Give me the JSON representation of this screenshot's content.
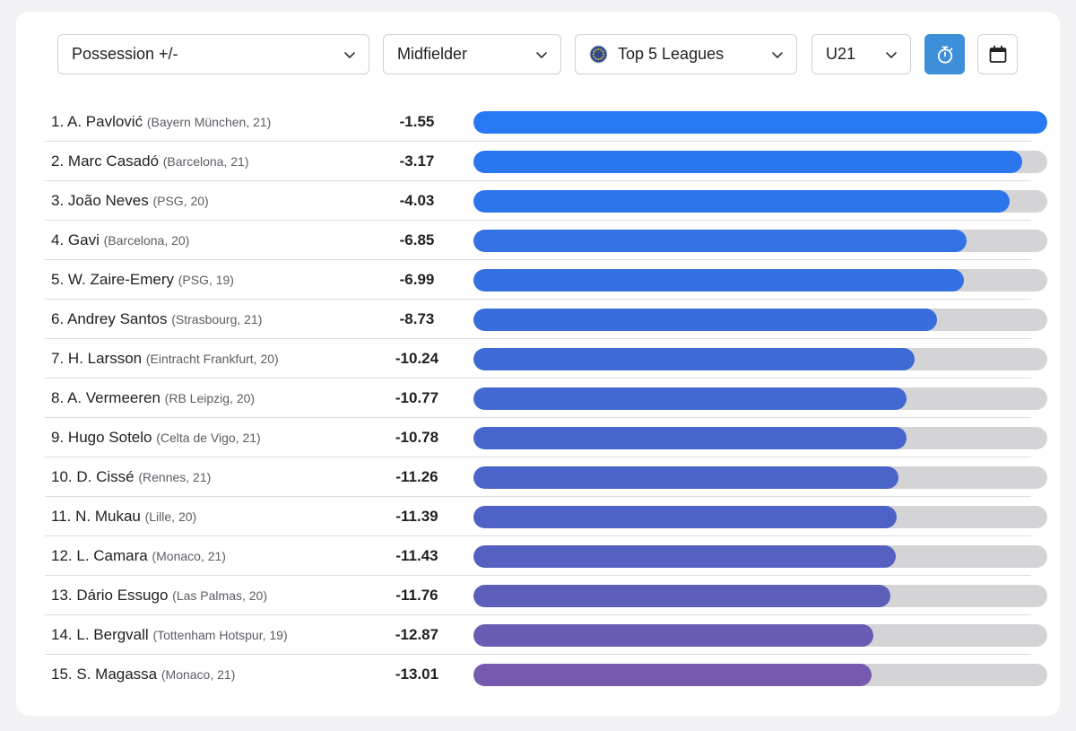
{
  "filters": {
    "metric": "Possession +/-",
    "position": "Midfielder",
    "competition": "Top 5 Leagues",
    "age_group": "U21"
  },
  "buttons": {
    "timer": "stopwatch-icon",
    "calendar": "calendar-icon"
  },
  "colors": {
    "accent": "#3d8fd9",
    "bar_track": "#d4d4d6",
    "bar_start": "#2878f4",
    "bar_end": "#755ab0"
  },
  "rankings": [
    {
      "rank": "1.",
      "name": "A. Pavlović",
      "meta": "(Bayern München, 21)",
      "value": "-1.55",
      "fill": 1.0,
      "color": "#2878f4"
    },
    {
      "rank": "2.",
      "name": "Marc Casadó",
      "meta": "(Barcelona, 21)",
      "value": "-3.17",
      "fill": 0.956,
      "color": "#2a76ee"
    },
    {
      "rank": "3.",
      "name": "João Neves",
      "meta": "(PSG, 20)",
      "value": "-4.03",
      "fill": 0.934,
      "color": "#2c75ea"
    },
    {
      "rank": "4.",
      "name": "Gavi",
      "meta": "(Barcelona, 20)",
      "value": "-6.85",
      "fill": 0.859,
      "color": "#3272e4"
    },
    {
      "rank": "5.",
      "name": "W. Zaire-Emery",
      "meta": "(PSG, 19)",
      "value": "-6.99",
      "fill": 0.855,
      "color": "#3370e2"
    },
    {
      "rank": "6.",
      "name": "Andrey Santos",
      "meta": "(Strasbourg, 21)",
      "value": "-8.73",
      "fill": 0.808,
      "color": "#386ddc"
    },
    {
      "rank": "7.",
      "name": "H. Larsson",
      "meta": "(Eintracht Frankfurt, 20)",
      "value": "-10.24",
      "fill": 0.768,
      "color": "#3e6ad6"
    },
    {
      "rank": "8.",
      "name": "A. Vermeeren",
      "meta": "(RB Leipzig, 20)",
      "value": "-10.77",
      "fill": 0.754,
      "color": "#4268d2"
    },
    {
      "rank": "9.",
      "name": "Hugo Sotelo",
      "meta": "(Celta de Vigo, 21)",
      "value": "-10.78",
      "fill": 0.754,
      "color": "#4666ce"
    },
    {
      "rank": "10.",
      "name": "D. Cissé",
      "meta": "(Rennes, 21)",
      "value": "-11.26",
      "fill": 0.74,
      "color": "#4a64ca"
    },
    {
      "rank": "11.",
      "name": "N. Mukau",
      "meta": "(Lille, 20)",
      "value": "-11.39",
      "fill": 0.737,
      "color": "#4e62c5"
    },
    {
      "rank": "12.",
      "name": "L. Camara",
      "meta": "(Monaco, 21)",
      "value": "-11.43",
      "fill": 0.736,
      "color": "#5560c0"
    },
    {
      "rank": "13.",
      "name": "Dário Essugo",
      "meta": "(Las Palmas, 20)",
      "value": "-11.76",
      "fill": 0.726,
      "color": "#5c5eba"
    },
    {
      "rank": "14.",
      "name": "L. Bergvall",
      "meta": "(Tottenham Hotspur, 19)",
      "value": "-12.87",
      "fill": 0.697,
      "color": "#685cb4"
    },
    {
      "rank": "15.",
      "name": "S. Magassa",
      "meta": "(Monaco, 21)",
      "value": "-13.01",
      "fill": 0.693,
      "color": "#755ab0"
    }
  ]
}
